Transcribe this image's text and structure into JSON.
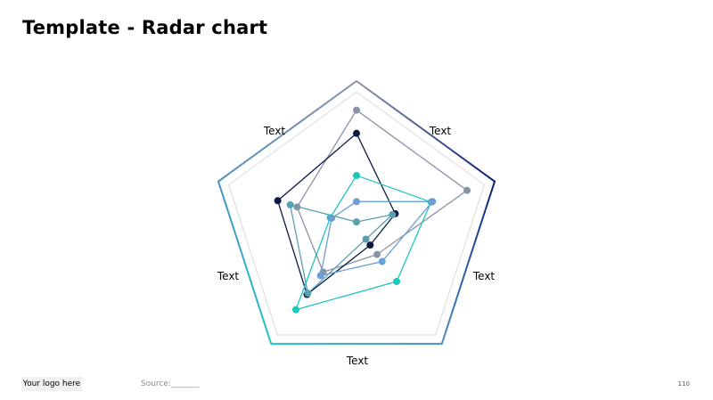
{
  "slide": {
    "title": "Template - Radar chart"
  },
  "footer": {
    "logo": "Your logo here",
    "source": "Source:_______",
    "page_number": "110"
  },
  "colors": {
    "frame_top_right": "#0b1f7a",
    "frame_left": "#8a93a6",
    "frame_bottom": "#1fc4c8",
    "frame_right": "#4a8fc4",
    "grid": "#d9d9d9"
  },
  "chart_data": {
    "type": "radar",
    "title": "",
    "axes": [
      "Text",
      "Text",
      "Text",
      "Text",
      "Text"
    ],
    "range": [
      0,
      1
    ],
    "grid_levels": 1,
    "series": [
      {
        "color": "#8a93a6",
        "values": [
          0.8,
          0.8,
          0.24,
          0.39,
          0.43
        ]
      },
      {
        "color": "#0c1a45",
        "values": [
          0.64,
          0.28,
          0.16,
          0.58,
          0.57
        ]
      },
      {
        "color": "#1cc7bf",
        "values": [
          0.35,
          0.54,
          0.47,
          0.71,
          0.19
        ]
      },
      {
        "color": "#6a9ed4",
        "values": [
          0.17,
          0.55,
          0.3,
          0.42,
          0.18
        ]
      },
      {
        "color": "#5a9fb0",
        "values": [
          0.03,
          0.26,
          0.11,
          0.57,
          0.48
        ]
      }
    ]
  }
}
